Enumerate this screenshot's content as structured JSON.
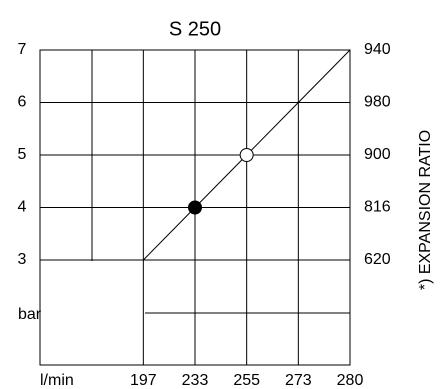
{
  "chart_data": {
    "type": "line",
    "title": "S 250",
    "categories": [
      197,
      233,
      255,
      273,
      280
    ],
    "series": [
      {
        "color": "#000000",
        "values": [
          3,
          4,
          5,
          6,
          7
        ]
      }
    ],
    "markers": [
      {
        "index": 1,
        "style": "filled"
      },
      {
        "index": 2,
        "style": "open"
      }
    ],
    "ylim": [
      1,
      7
    ],
    "yticks": [
      3,
      4,
      5,
      6,
      7
    ],
    "ylabel": "bar",
    "xlabel": "l/min",
    "y2_labels": [
      620,
      816,
      900,
      980,
      940
    ],
    "y2label": "*) EXPANSION RATIO",
    "grid": true
  }
}
